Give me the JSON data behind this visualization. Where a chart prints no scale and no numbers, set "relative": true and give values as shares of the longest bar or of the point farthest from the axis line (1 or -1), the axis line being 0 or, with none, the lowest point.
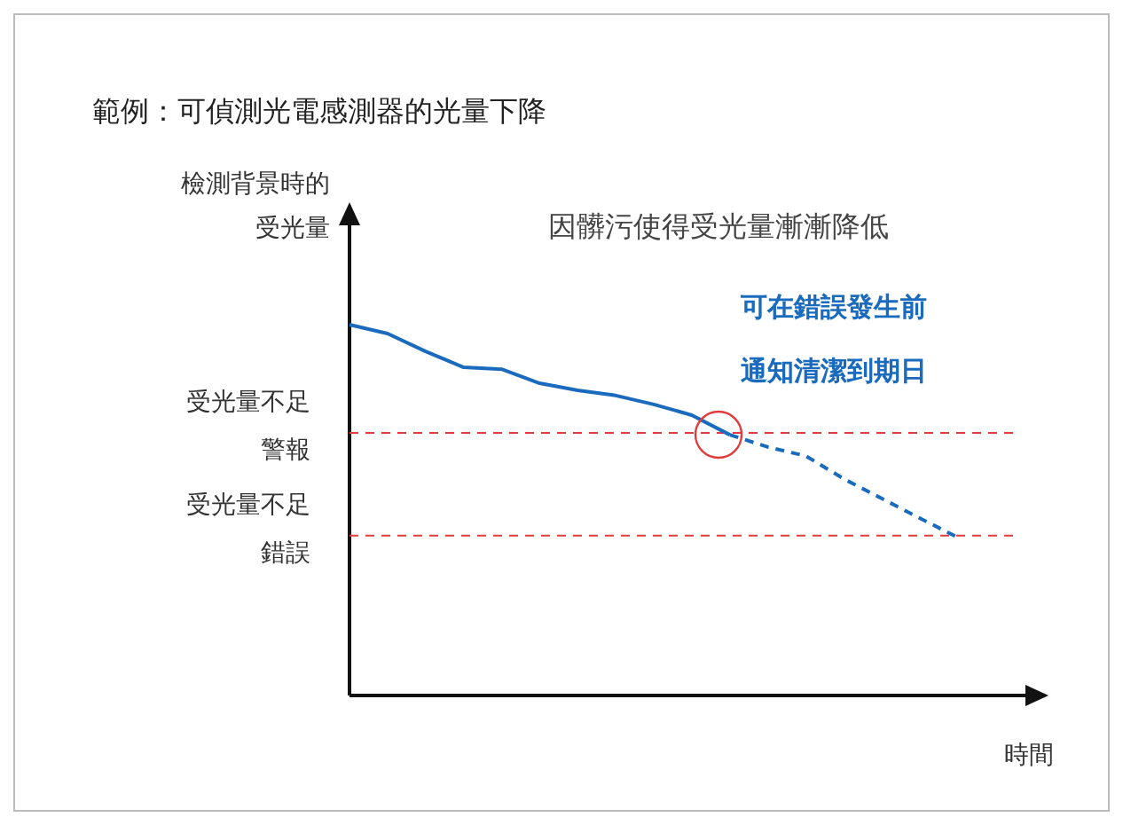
{
  "chart_data": {
    "type": "line",
    "title": "範例：可偵測光電感測器的光量下降",
    "ylabel": "檢測背景時的受光量",
    "xlabel": "時間",
    "relative": true,
    "grid": false,
    "legend": false,
    "marker": "none",
    "categories": [
      null,
      null,
      null,
      null,
      null,
      null,
      null,
      null,
      null,
      null,
      null,
      null,
      null,
      null,
      null,
      null,
      null
    ],
    "series": [
      {
        "color": "#1a6bbd",
        "line_style": "solid",
        "values": [
          1,
          0.976,
          0.928,
          0.885,
          0.88,
          0.842,
          0.823,
          0.809,
          0.785,
          0.756,
          0.703,
          null,
          null,
          null,
          null,
          null,
          null
        ]
      },
      {
        "color": "#1a6bbd",
        "line_style": "dashed",
        "values": [
          null,
          null,
          null,
          null,
          null,
          null,
          null,
          null,
          null,
          null,
          0.703,
          0.67,
          0.646,
          0.584,
          0.531,
          0.478,
          0.426
        ]
      }
    ],
    "ref_lines": [
      {
        "axis": "y",
        "value": 0.708,
        "label": "受光量不足警報",
        "color": "#e03c3c",
        "line_style": "dashed"
      },
      {
        "axis": "y",
        "value": 0.431,
        "label": "受光量不足錯誤",
        "color": "#e03c3c",
        "line_style": "dashed"
      }
    ],
    "annotations": [
      "因髒污使得受光量漸漸降低",
      "可在錯誤發生前通知清潔到期日"
    ]
  }
}
